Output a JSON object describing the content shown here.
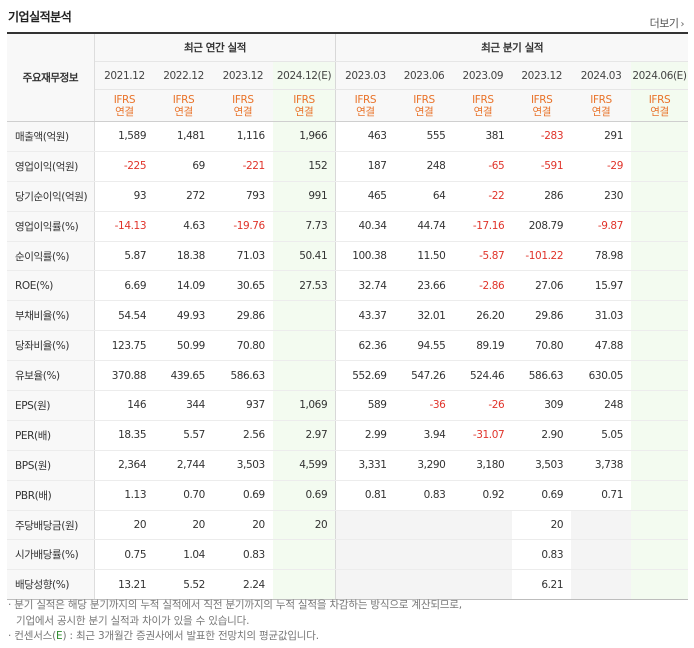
{
  "header": {
    "title": "기업실적분석",
    "more_label": "더보기"
  },
  "table": {
    "corner_label": "주요재무정보",
    "groups": {
      "annual": "최근 연간 실적",
      "quarterly": "최근 분기 실적"
    },
    "periods": [
      "2021.12",
      "2022.12",
      "2023.12",
      "2024.12(E)",
      "2023.03",
      "2023.06",
      "2023.09",
      "2023.12",
      "2024.03",
      "2024.06(E)"
    ],
    "ifrs_line1": "IFRS",
    "ifrs_line2": "연결",
    "rows": [
      {
        "label": "매출액(억원)",
        "values": [
          "1,589",
          "1,481",
          "1,116",
          "1,966",
          "463",
          "555",
          "381",
          "-283",
          "291",
          ""
        ]
      },
      {
        "label": "영업이익(억원)",
        "values": [
          "-225",
          "69",
          "-221",
          "152",
          "187",
          "248",
          "-65",
          "-591",
          "-29",
          ""
        ]
      },
      {
        "label": "당기순이익(억원)",
        "values": [
          "93",
          "272",
          "793",
          "991",
          "465",
          "64",
          "-22",
          "286",
          "230",
          ""
        ]
      },
      {
        "label": "영업이익률(%)",
        "values": [
          "-14.13",
          "4.63",
          "-19.76",
          "7.73",
          "40.34",
          "44.74",
          "-17.16",
          "208.79",
          "-9.87",
          ""
        ]
      },
      {
        "label": "순이익률(%)",
        "values": [
          "5.87",
          "18.38",
          "71.03",
          "50.41",
          "100.38",
          "11.50",
          "-5.87",
          "-101.22",
          "78.98",
          ""
        ]
      },
      {
        "label": "ROE(%)",
        "values": [
          "6.69",
          "14.09",
          "30.65",
          "27.53",
          "32.74",
          "23.66",
          "-2.86",
          "27.06",
          "15.97",
          ""
        ]
      },
      {
        "label": "부채비율(%)",
        "values": [
          "54.54",
          "49.93",
          "29.86",
          "",
          "43.37",
          "32.01",
          "26.20",
          "29.86",
          "31.03",
          ""
        ]
      },
      {
        "label": "당좌비율(%)",
        "values": [
          "123.75",
          "50.99",
          "70.80",
          "",
          "62.36",
          "94.55",
          "89.19",
          "70.80",
          "47.88",
          ""
        ]
      },
      {
        "label": "유보율(%)",
        "values": [
          "370.88",
          "439.65",
          "586.63",
          "",
          "552.69",
          "547.26",
          "524.46",
          "586.63",
          "630.05",
          ""
        ]
      },
      {
        "label": "EPS(원)",
        "values": [
          "146",
          "344",
          "937",
          "1,069",
          "589",
          "-36",
          "-26",
          "309",
          "248",
          ""
        ]
      },
      {
        "label": "PER(배)",
        "values": [
          "18.35",
          "5.57",
          "2.56",
          "2.97",
          "2.99",
          "3.94",
          "-31.07",
          "2.90",
          "5.05",
          ""
        ]
      },
      {
        "label": "BPS(원)",
        "values": [
          "2,364",
          "2,744",
          "3,503",
          "4,599",
          "3,331",
          "3,290",
          "3,180",
          "3,503",
          "3,738",
          ""
        ]
      },
      {
        "label": "PBR(배)",
        "values": [
          "1.13",
          "0.70",
          "0.69",
          "0.69",
          "0.81",
          "0.83",
          "0.92",
          "0.69",
          "0.71",
          ""
        ]
      },
      {
        "label": "주당배당금(원)",
        "values": [
          "20",
          "20",
          "20",
          "20",
          "",
          "",
          "",
          "20",
          "",
          ""
        ]
      },
      {
        "label": "시가배당률(%)",
        "values": [
          "0.75",
          "1.04",
          "0.83",
          "",
          "",
          "",
          "",
          "0.83",
          "",
          ""
        ]
      },
      {
        "label": "배당성향(%)",
        "values": [
          "13.21",
          "5.52",
          "2.24",
          "",
          "",
          "",
          "",
          "6.21",
          "",
          ""
        ]
      }
    ]
  },
  "notes": {
    "line1": "· 분기 실적은 해당 분기까지의 누적 실적에서 직전 분기까지의 누적 실적을 차감하는 방식으로 계산되므로,",
    "line2": "기업에서 공시한 분기 실적과 차이가 있을 수 있습니다.",
    "line3_prefix": "· 컨센서스(",
    "line3_mark": "E",
    "line3_suffix": ") : 최근 3개월간 증권사에서 발표한 전망치의 평균값입니다."
  }
}
